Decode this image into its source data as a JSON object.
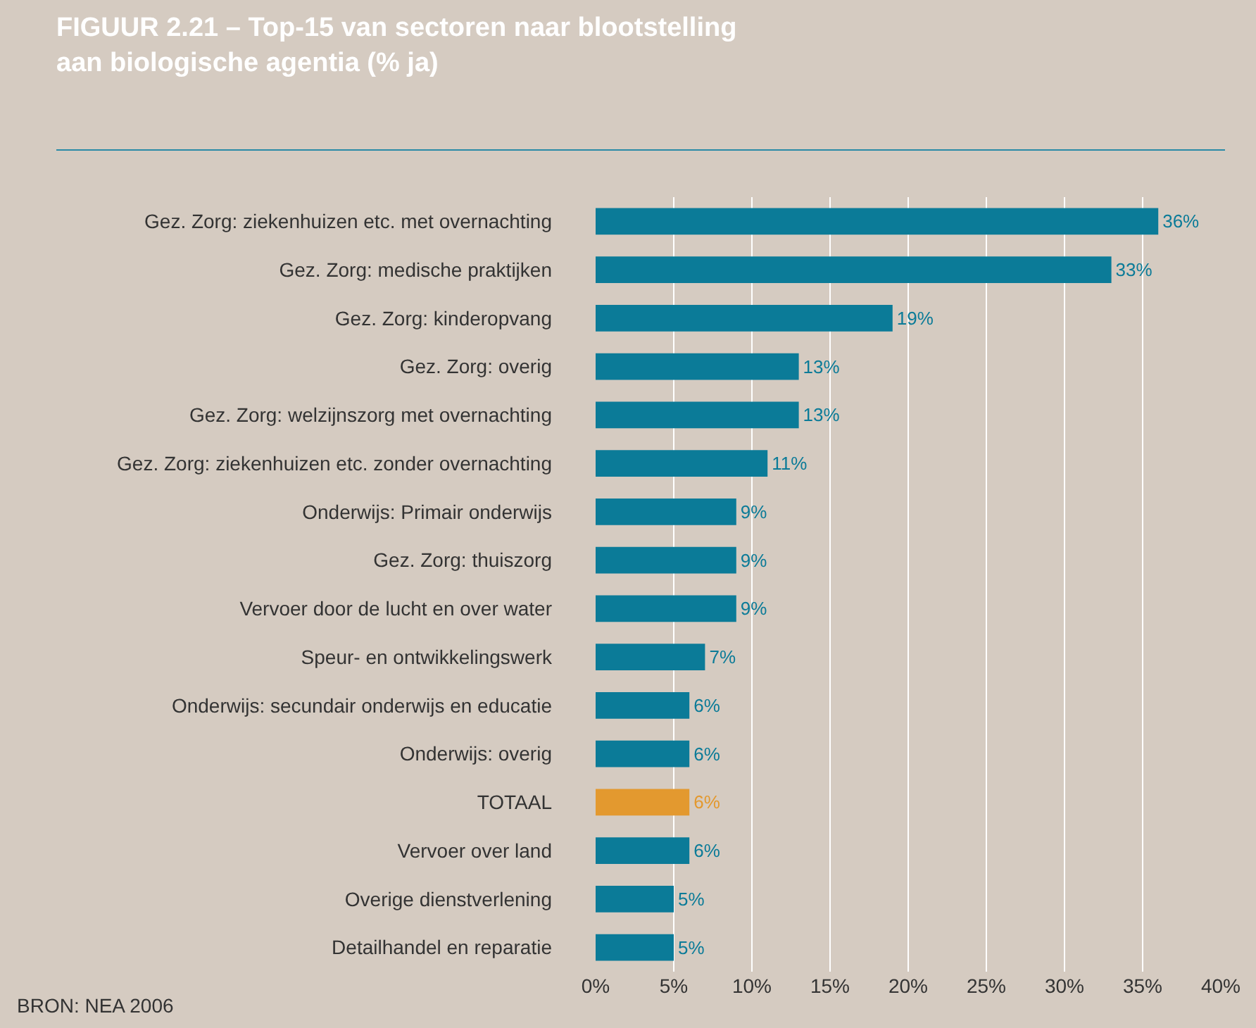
{
  "chart_data": {
    "type": "bar",
    "orientation": "horizontal",
    "title": "FIGUUR 2.21 – Top-15 van sectoren naar blootstelling aan biologische agentia (% ja)",
    "categories": [
      "Gez. Zorg: ziekenhuizen etc. met overnachting",
      "Gez. Zorg: medische praktijken",
      "Gez. Zorg: kinderopvang",
      "Gez. Zorg: overig",
      "Gez. Zorg: welzijnszorg met overnachting",
      "Gez. Zorg: ziekenhuizen etc. zonder overnachting",
      "Onderwijs: Primair onderwijs",
      "Gez. Zorg: thuiszorg",
      "Vervoer door de lucht en over water",
      "Speur- en ontwikkelingswerk",
      "Onderwijs: secundair onderwijs en educatie",
      "Onderwijs: overig",
      "TOTAAL",
      "Vervoer over land",
      "Overige dienstverlening",
      "Detailhandel en reparatie"
    ],
    "values": [
      36,
      33,
      19,
      13,
      13,
      11,
      9,
      9,
      9,
      7,
      6,
      6,
      6,
      6,
      5,
      5
    ],
    "value_labels": [
      "36%",
      "33%",
      "19%",
      "13%",
      "13%",
      "11%",
      "9%",
      "9%",
      "9%",
      "7%",
      "6%",
      "6%",
      "6%",
      "6%",
      "5%",
      "5%"
    ],
    "colors": [
      "#0b7b98",
      "#0b7b98",
      "#0b7b98",
      "#0b7b98",
      "#0b7b98",
      "#0b7b98",
      "#0b7b98",
      "#0b7b98",
      "#0b7b98",
      "#0b7b98",
      "#0b7b98",
      "#0b7b98",
      "#e3992f",
      "#0b7b98",
      "#0b7b98",
      "#0b7b98"
    ],
    "xlim": [
      0,
      40
    ],
    "xticks": [
      {
        "value": 0,
        "label": "0%"
      },
      {
        "value": 5,
        "label": "5%"
      },
      {
        "value": 10,
        "label": "10%"
      },
      {
        "value": 15,
        "label": "15%"
      },
      {
        "value": 20,
        "label": "20%"
      },
      {
        "value": 25,
        "label": "25%"
      },
      {
        "value": 30,
        "label": "30%"
      },
      {
        "value": 35,
        "label": "35%"
      },
      {
        "value": 40,
        "label": "40%"
      }
    ],
    "grid": "x",
    "annotations": [
      "BRON: NEA 2006"
    ]
  }
}
